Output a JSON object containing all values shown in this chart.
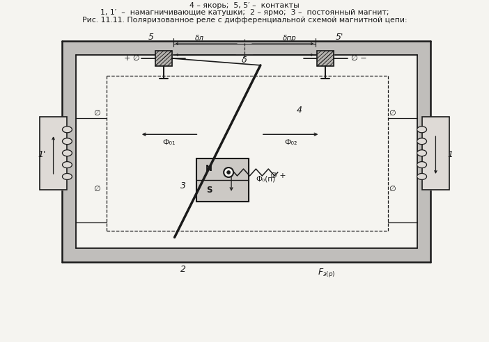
{
  "title_line1": "Рис. 11.11. Поляризованное реле с дифференциальной схемой магнитной цепи:",
  "title_line2": "1, 1′  –  намагничивающие катушки;  2 – ярмо;  3 –  постоянный магнит;",
  "title_line3": "4 – якорь;  5, 5′ –  контакты",
  "bg_color": "#f5f4f0",
  "line_color": "#1a1a1a"
}
